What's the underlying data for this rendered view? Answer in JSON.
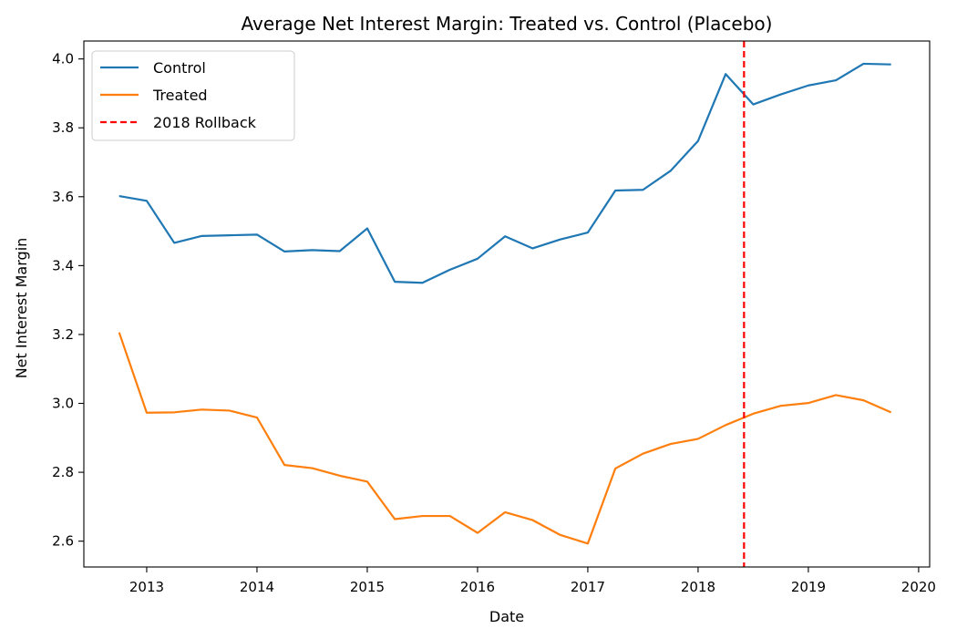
{
  "chart_data": {
    "type": "line",
    "title": "Average Net Interest Margin: Treated vs. Control (Placebo)",
    "xlabel": "Date",
    "ylabel": "Net Interest Margin",
    "xlim": [
      2012.43,
      2020.1
    ],
    "ylim": [
      2.525,
      4.052
    ],
    "x_ticks": [
      2013,
      2014,
      2015,
      2016,
      2017,
      2018,
      2019,
      2020
    ],
    "y_ticks": [
      2.6,
      2.8,
      3.0,
      3.2,
      3.4,
      3.6,
      3.8,
      4.0
    ],
    "y_tick_labels": [
      "2.6",
      "2.8",
      "3.0",
      "3.2",
      "3.4",
      "3.6",
      "3.8",
      "4.0"
    ],
    "x": [
      "2012-10-01",
      "2013-01-01",
      "2013-04-01",
      "2013-07-01",
      "2013-10-01",
      "2014-01-01",
      "2014-04-01",
      "2014-07-01",
      "2014-10-01",
      "2015-01-01",
      "2015-04-01",
      "2015-07-01",
      "2015-10-01",
      "2016-01-01",
      "2016-04-01",
      "2016-07-01",
      "2016-10-01",
      "2017-01-01",
      "2017-04-01",
      "2017-07-01",
      "2017-10-01",
      "2018-01-01",
      "2018-04-01",
      "2018-07-01",
      "2018-10-01",
      "2019-01-01",
      "2019-04-01",
      "2019-07-01",
      "2019-10-01"
    ],
    "series": [
      {
        "name": "Control",
        "color": "#1f77b4",
        "values": [
          3.602,
          3.588,
          3.466,
          3.486,
          3.488,
          3.49,
          3.441,
          3.445,
          3.442,
          3.508,
          3.353,
          3.35,
          3.388,
          3.42,
          3.485,
          3.45,
          3.476,
          3.496,
          3.618,
          3.62,
          3.675,
          3.762,
          3.956,
          3.868,
          3.897,
          3.923,
          3.938,
          3.986,
          3.984
        ]
      },
      {
        "name": "Treated",
        "color": "#ff7f0e",
        "values": [
          3.206,
          2.973,
          2.974,
          2.982,
          2.979,
          2.959,
          2.821,
          2.812,
          2.79,
          2.773,
          2.664,
          2.673,
          2.673,
          2.624,
          2.684,
          2.661,
          2.618,
          2.593,
          2.811,
          2.854,
          2.882,
          2.897,
          2.937,
          2.97,
          2.993,
          3.001,
          3.024,
          3.009,
          2.974
        ]
      }
    ],
    "vline": {
      "x": "2018-06-01",
      "label": "2018 Rollback",
      "color": "#ff0000",
      "style": "dashed"
    },
    "grid": false,
    "legend_placement": "top-left"
  }
}
